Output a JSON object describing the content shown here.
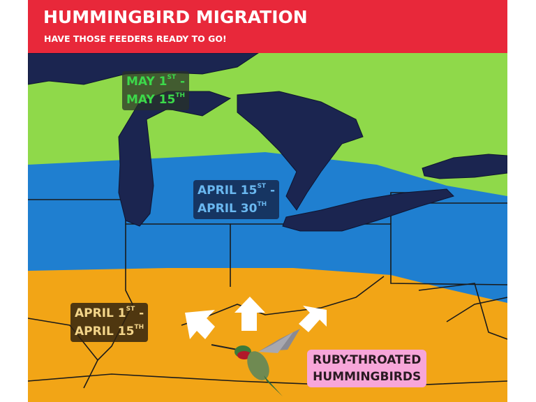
{
  "header": {
    "title": "HUMMINGBIRD MIGRATION",
    "subtitle": "HAVE THOSE FEEDERS READY TO GO!"
  },
  "zones": [
    {
      "line1": "MAY 1",
      "sup1": "ST",
      "dash": " -",
      "line2": "MAY 15",
      "sup2": "TH",
      "color": "#8fd94a"
    },
    {
      "line1": "APRIL 15",
      "sup1": "ST",
      "dash": " -",
      "line2": "APRIL 30",
      "sup2": "TH",
      "color": "#1f7fd0"
    },
    {
      "line1": "APRIL 1",
      "sup1": "ST",
      "dash": " -",
      "line2": "APRIL 15",
      "sup2": "TH",
      "color": "#f2a516"
    }
  ],
  "species_label": {
    "line1": "RUBY-THROATED",
    "line2": "HUMMINGBIRDS"
  },
  "colors": {
    "header": "#e8283a",
    "lakes": "#1b2550",
    "arrows": "#ffffff",
    "species_label_bg": "#f7a6d9"
  },
  "icons": [
    "arrow-up-left-icon",
    "arrow-up-icon",
    "arrow-up-right-icon",
    "hummingbird-image"
  ]
}
